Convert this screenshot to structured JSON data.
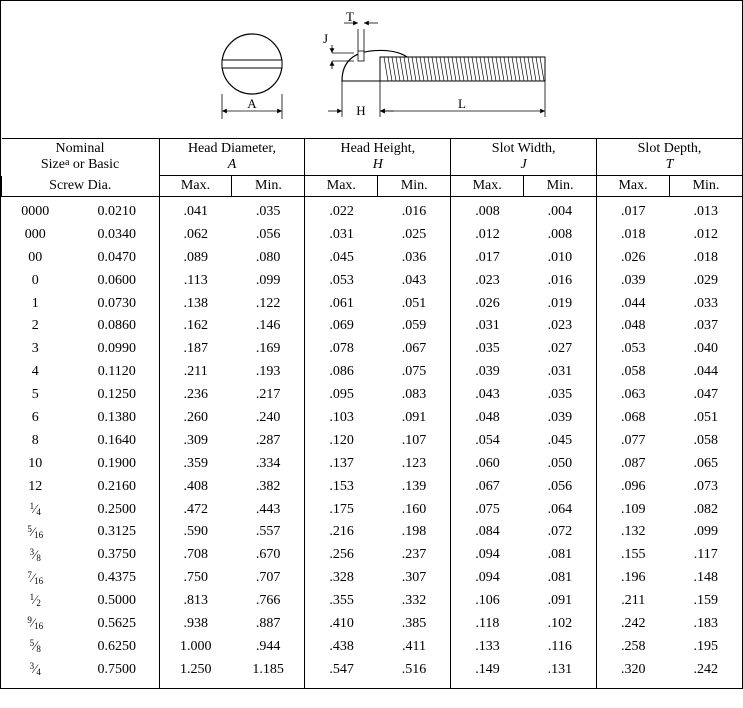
{
  "diagram": {
    "labels": {
      "A": "A",
      "H": "H",
      "L": "L",
      "T": "T",
      "J": "J"
    },
    "stroke": "#000000",
    "fill": "#ffffff"
  },
  "table": {
    "header": {
      "nominal_line1": "Nominal",
      "nominal_line2_prefix": "Size",
      "nominal_line2_sup": "a",
      "nominal_line2_suffix": " or Basic",
      "nominal_line3": "Screw Dia.",
      "groups": [
        {
          "title": "Head Diameter,",
          "sym": "A"
        },
        {
          "title": "Head Height,",
          "sym": "H"
        },
        {
          "title": "Slot Width,",
          "sym": "J"
        },
        {
          "title": "Slot Depth,",
          "sym": "T"
        }
      ],
      "max": "Max.",
      "min": "Min."
    },
    "rows": [
      {
        "nom": "0000",
        "dia": "0.0210",
        "a_max": ".041",
        "a_min": ".035",
        "h_max": ".022",
        "h_min": ".016",
        "j_max": ".008",
        "j_min": ".004",
        "t_max": ".017",
        "t_min": ".013"
      },
      {
        "nom": "000",
        "dia": "0.0340",
        "a_max": ".062",
        "a_min": ".056",
        "h_max": ".031",
        "h_min": ".025",
        "j_max": ".012",
        "j_min": ".008",
        "t_max": ".018",
        "t_min": ".012"
      },
      {
        "nom": "00",
        "dia": "0.0470",
        "a_max": ".089",
        "a_min": ".080",
        "h_max": ".045",
        "h_min": ".036",
        "j_max": ".017",
        "j_min": ".010",
        "t_max": ".026",
        "t_min": ".018"
      },
      {
        "nom": "0",
        "dia": "0.0600",
        "a_max": ".113",
        "a_min": ".099",
        "h_max": ".053",
        "h_min": ".043",
        "j_max": ".023",
        "j_min": ".016",
        "t_max": ".039",
        "t_min": ".029"
      },
      {
        "nom": "1",
        "dia": "0.0730",
        "a_max": ".138",
        "a_min": ".122",
        "h_max": ".061",
        "h_min": ".051",
        "j_max": ".026",
        "j_min": ".019",
        "t_max": ".044",
        "t_min": ".033"
      },
      {
        "nom": "2",
        "dia": "0.0860",
        "a_max": ".162",
        "a_min": ".146",
        "h_max": ".069",
        "h_min": ".059",
        "j_max": ".031",
        "j_min": ".023",
        "t_max": ".048",
        "t_min": ".037"
      },
      {
        "nom": "3",
        "dia": "0.0990",
        "a_max": ".187",
        "a_min": ".169",
        "h_max": ".078",
        "h_min": ".067",
        "j_max": ".035",
        "j_min": ".027",
        "t_max": ".053",
        "t_min": ".040"
      },
      {
        "nom": "4",
        "dia": "0.1120",
        "a_max": ".211",
        "a_min": ".193",
        "h_max": ".086",
        "h_min": ".075",
        "j_max": ".039",
        "j_min": ".031",
        "t_max": ".058",
        "t_min": ".044"
      },
      {
        "nom": "5",
        "dia": "0.1250",
        "a_max": ".236",
        "a_min": ".217",
        "h_max": ".095",
        "h_min": ".083",
        "j_max": ".043",
        "j_min": ".035",
        "t_max": ".063",
        "t_min": ".047"
      },
      {
        "nom": "6",
        "dia": "0.1380",
        "a_max": ".260",
        "a_min": ".240",
        "h_max": ".103",
        "h_min": ".091",
        "j_max": ".048",
        "j_min": ".039",
        "t_max": ".068",
        "t_min": ".051"
      },
      {
        "nom": "8",
        "dia": "0.1640",
        "a_max": ".309",
        "a_min": ".287",
        "h_max": ".120",
        "h_min": ".107",
        "j_max": ".054",
        "j_min": ".045",
        "t_max": ".077",
        "t_min": ".058"
      },
      {
        "nom": "10",
        "dia": "0.1900",
        "a_max": ".359",
        "a_min": ".334",
        "h_max": ".137",
        "h_min": ".123",
        "j_max": ".060",
        "j_min": ".050",
        "t_max": ".087",
        "t_min": ".065"
      },
      {
        "nom": "12",
        "dia": "0.2160",
        "a_max": ".408",
        "a_min": ".382",
        "h_max": ".153",
        "h_min": ".139",
        "j_max": ".067",
        "j_min": ".056",
        "t_max": ".096",
        "t_min": ".073"
      },
      {
        "nom_frac": {
          "n": "1",
          "d": "4"
        },
        "dia": "0.2500",
        "a_max": ".472",
        "a_min": ".443",
        "h_max": ".175",
        "h_min": ".160",
        "j_max": ".075",
        "j_min": ".064",
        "t_max": ".109",
        "t_min": ".082"
      },
      {
        "nom_frac": {
          "n": "5",
          "d": "16"
        },
        "dia": "0.3125",
        "a_max": ".590",
        "a_min": ".557",
        "h_max": ".216",
        "h_min": ".198",
        "j_max": ".084",
        "j_min": ".072",
        "t_max": ".132",
        "t_min": ".099"
      },
      {
        "nom_frac": {
          "n": "3",
          "d": "8"
        },
        "dia": "0.3750",
        "a_max": ".708",
        "a_min": ".670",
        "h_max": ".256",
        "h_min": ".237",
        "j_max": ".094",
        "j_min": ".081",
        "t_max": ".155",
        "t_min": ".117"
      },
      {
        "nom_frac": {
          "n": "7",
          "d": "16"
        },
        "dia": "0.4375",
        "a_max": ".750",
        "a_min": ".707",
        "h_max": ".328",
        "h_min": ".307",
        "j_max": ".094",
        "j_min": ".081",
        "t_max": ".196",
        "t_min": ".148"
      },
      {
        "nom_frac": {
          "n": "1",
          "d": "2"
        },
        "dia": "0.5000",
        "a_max": ".813",
        "a_min": ".766",
        "h_max": ".355",
        "h_min": ".332",
        "j_max": ".106",
        "j_min": ".091",
        "t_max": ".211",
        "t_min": ".159"
      },
      {
        "nom_frac": {
          "n": "9",
          "d": "16"
        },
        "dia": "0.5625",
        "a_max": ".938",
        "a_min": ".887",
        "h_max": ".410",
        "h_min": ".385",
        "j_max": ".118",
        "j_min": ".102",
        "t_max": ".242",
        "t_min": ".183"
      },
      {
        "nom_frac": {
          "n": "5",
          "d": "8"
        },
        "dia": "0.6250",
        "a_max": "1.000",
        "a_min": ".944",
        "h_max": ".438",
        "h_min": ".411",
        "j_max": ".133",
        "j_min": ".116",
        "t_max": ".258",
        "t_min": ".195"
      },
      {
        "nom_frac": {
          "n": "3",
          "d": "4"
        },
        "dia": "0.7500",
        "a_max": "1.250",
        "a_min": "1.185",
        "h_max": ".547",
        "h_min": ".516",
        "j_max": ".149",
        "j_min": ".131",
        "t_max": ".320",
        "t_min": ".242"
      }
    ]
  }
}
